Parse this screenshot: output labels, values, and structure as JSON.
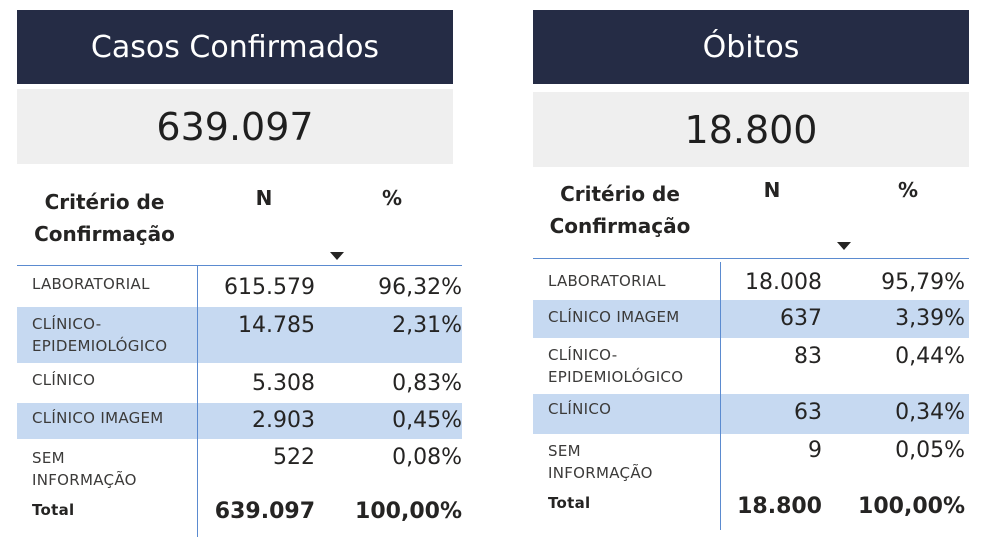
{
  "casos": {
    "title": "Casos Confirmados",
    "kpi": "639.097",
    "header": {
      "criterio": "Critério de Confirmação",
      "n": "N",
      "pct": "%"
    },
    "rows": [
      {
        "label": "LABORATORIAL",
        "n": "615.579",
        "pct": "96,32%",
        "highlight": false
      },
      {
        "label": "CLÍNICO-EPIDEMIOLÓGICO",
        "n": "14.785",
        "pct": "2,31%",
        "highlight": true
      },
      {
        "label": "CLÍNICO",
        "n": "5.308",
        "pct": "0,83%",
        "highlight": false
      },
      {
        "label": "CLÍNICO IMAGEM",
        "n": "2.903",
        "pct": "0,45%",
        "highlight": true
      },
      {
        "label": "SEM INFORMAÇÃO",
        "n": "522",
        "pct": "0,08%",
        "highlight": false
      }
    ],
    "total": {
      "label": "Total",
      "n": "639.097",
      "pct": "100,00%"
    }
  },
  "obitos": {
    "title": "Óbitos",
    "kpi": "18.800",
    "header": {
      "criterio": "Critério de Confirmação",
      "n": "N",
      "pct": "%"
    },
    "rows": [
      {
        "label": "LABORATORIAL",
        "n": "18.008",
        "pct": "95,79%",
        "highlight": false
      },
      {
        "label": "CLÍNICO IMAGEM",
        "n": "637",
        "pct": "3,39%",
        "highlight": true
      },
      {
        "label": "CLÍNICO-EPIDEMIOLÓGICO",
        "n": "83",
        "pct": "0,44%",
        "highlight": false
      },
      {
        "label": "CLÍNICO",
        "n": "63",
        "pct": "0,34%",
        "highlight": true
      },
      {
        "label": "SEM INFORMAÇÃO",
        "n": "9",
        "pct": "0,05%",
        "highlight": false
      }
    ],
    "total": {
      "label": "Total",
      "n": "18.800",
      "pct": "100,00%"
    }
  },
  "colors": {
    "title_bg": "#252c45",
    "kpi_bg": "#efefef",
    "row_highlight": "#c6d9f1",
    "grid_line": "#5b8bd0"
  }
}
